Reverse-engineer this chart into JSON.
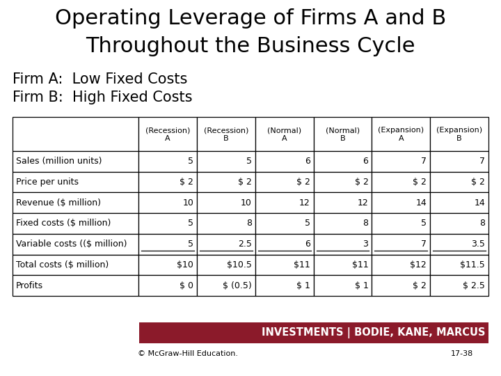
{
  "title_line1": "Operating Leverage of Firms A and B",
  "title_line2": "Throughout the Business Cycle",
  "subtitle1": "Firm A:  Low Fixed Costs",
  "subtitle2": "Firm B:  High Fixed Costs",
  "col_headers": [
    [
      "(Recession)",
      "A"
    ],
    [
      "(Recession)",
      "B"
    ],
    [
      "(Normal)",
      "A"
    ],
    [
      "(Normal)",
      "B"
    ],
    [
      "(Expansion)",
      "A"
    ],
    [
      "(Expansion)",
      "B"
    ]
  ],
  "row_labels": [
    "Sales (million units)",
    "Price per units",
    "Revenue ($ million)",
    "Fixed costs ($ million)",
    "Variable costs (($ million)",
    "Total costs ($ million)",
    "Profits"
  ],
  "table_data": [
    [
      "5",
      "5",
      "6",
      "6",
      "7",
      "7"
    ],
    [
      "$ 2",
      "$ 2",
      "$ 2",
      "$ 2",
      "$ 2",
      "$ 2"
    ],
    [
      "10",
      "10",
      "12",
      "12",
      "14",
      "14"
    ],
    [
      "5",
      "8",
      "5",
      "8",
      "5",
      "8"
    ],
    [
      "5",
      "2.5",
      "6",
      "3",
      "7",
      "3.5"
    ],
    [
      "$10",
      "$10.5",
      "$11",
      "$11",
      "$12",
      "$11.5"
    ],
    [
      "$ 0",
      "$ (0.5)",
      "$ 1",
      "$ 1",
      "$ 2",
      "$ 2.5"
    ]
  ],
  "underline_row": 4,
  "footer_banner_color": "#8B1A2A",
  "footer_text": "INVESTMENTS | BODIE, KANE, MARCUS",
  "footer_text_color": "#FFFFFF",
  "copyright_text": "© McGraw-Hill Education.",
  "page_num": "17-38",
  "bg_color": "#FFFFFF",
  "table_border_color": "#000000",
  "title_font_size": 22,
  "subtitle_font_size": 15,
  "table_font_size": 9,
  "header_font_size": 8,
  "footer_font_size": 10.5,
  "copyright_font_size": 8
}
